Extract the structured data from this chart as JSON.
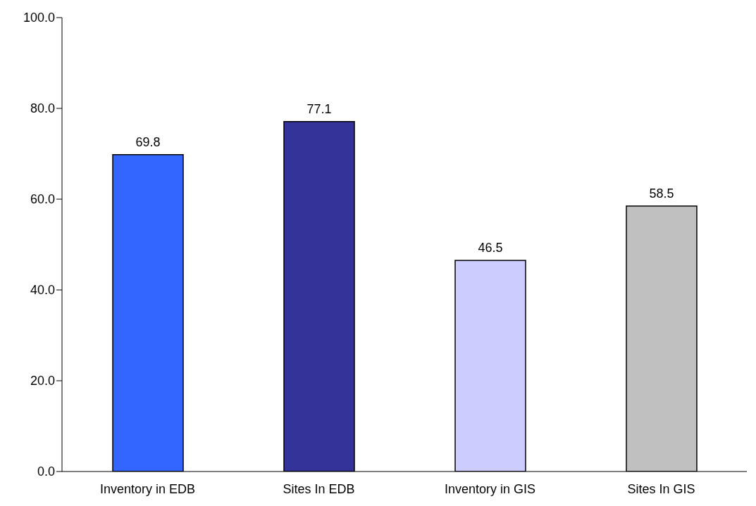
{
  "chart_data": {
    "type": "bar",
    "categories": [
      "Inventory in EDB",
      "Sites In EDB",
      "Inventory in GIS",
      "Sites In GIS"
    ],
    "values": [
      69.8,
      77.1,
      46.5,
      58.5
    ],
    "colors": [
      "#3366ff",
      "#333399",
      "#ccccff",
      "#c0c0c0"
    ],
    "ylim": [
      0,
      100
    ],
    "yticks": [
      {
        "value": 0,
        "label": "0.0"
      },
      {
        "value": 20,
        "label": "20.0"
      },
      {
        "value": 40,
        "label": "40.0"
      },
      {
        "value": 60,
        "label": "60.0"
      },
      {
        "value": 80,
        "label": "80.0"
      },
      {
        "value": 100,
        "label": "100.0"
      }
    ],
    "data_labels": true
  }
}
